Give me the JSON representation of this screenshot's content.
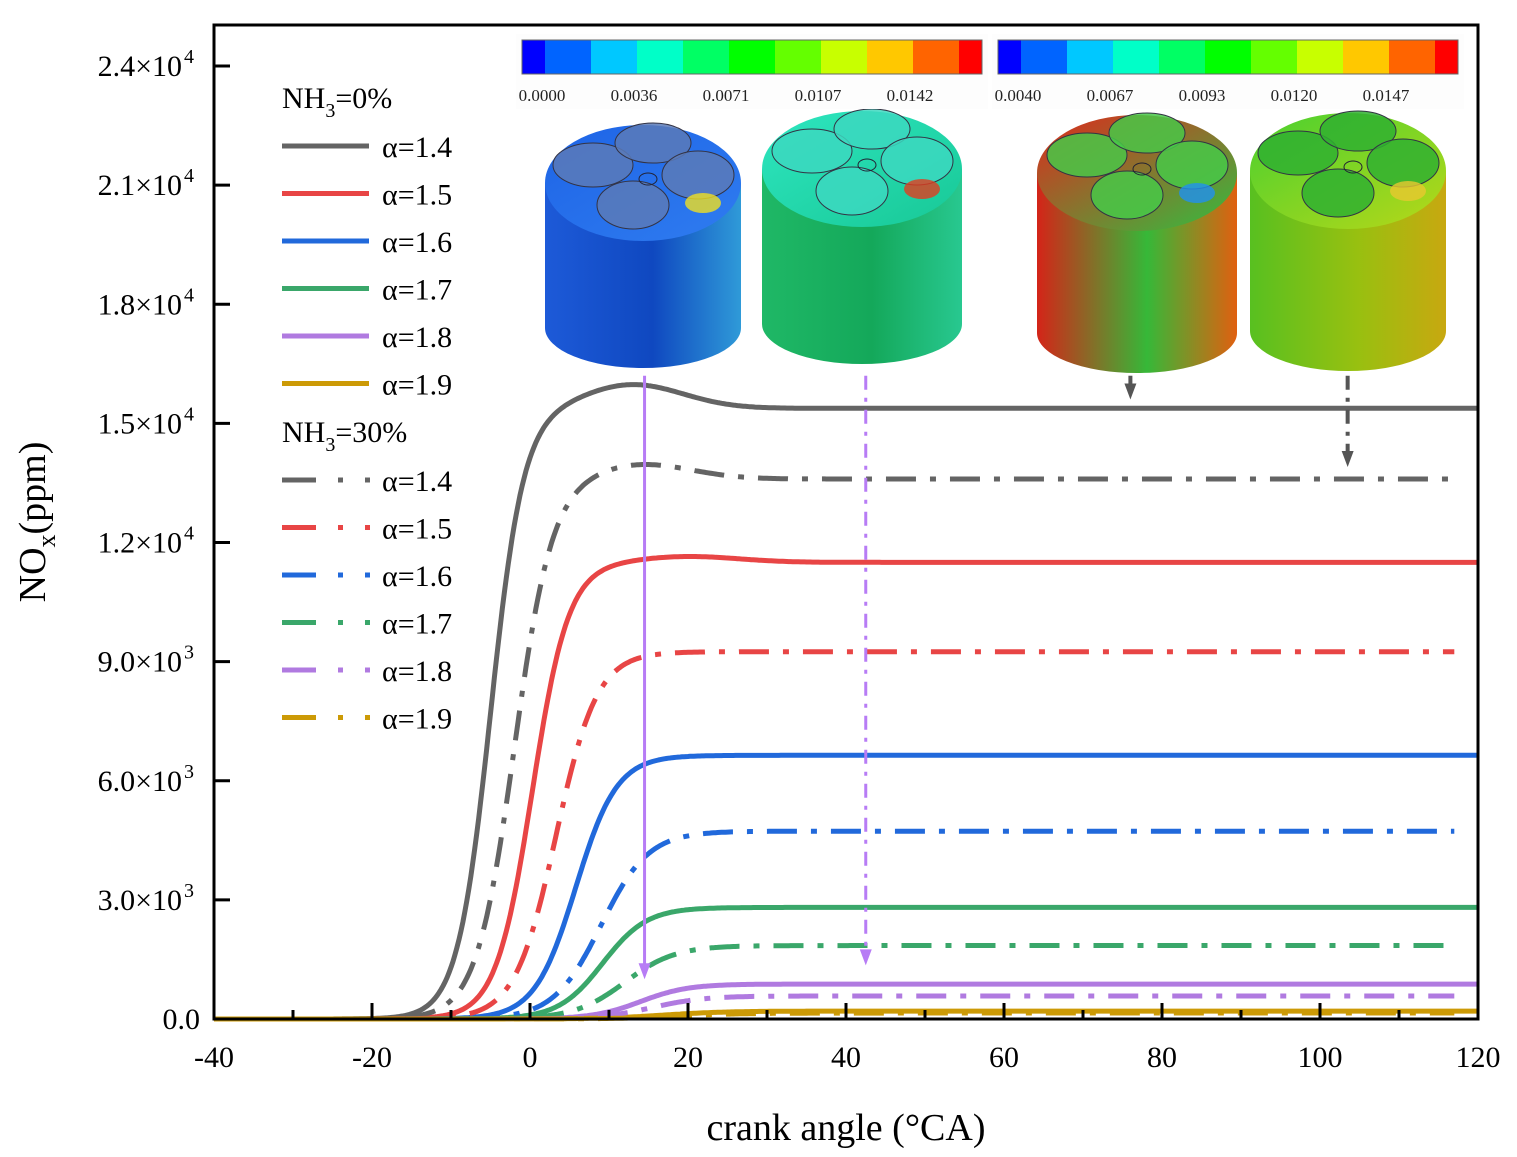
{
  "chart_data": {
    "type": "line",
    "title": "",
    "xlabel": "crank angle (°CA)",
    "ylabel_main": "NO",
    "ylabel_sub": "x",
    "ylabel_unit": "(ppm)",
    "xlim": [
      -40,
      120
    ],
    "ylim": [
      0,
      25000
    ],
    "grid": false,
    "x_ticks": [
      -40,
      -20,
      0,
      20,
      40,
      60,
      80,
      100,
      120
    ],
    "x_tick_labels": [
      "-40",
      "-20",
      "0",
      "20",
      "40",
      "60",
      "80",
      "100",
      "120"
    ],
    "x_minor_ticks": [
      -30,
      -10,
      10,
      30,
      50,
      70,
      90,
      110
    ],
    "y_ticks": [
      0,
      3000,
      6000,
      9000,
      12000,
      15000,
      18000,
      21000,
      24000
    ],
    "y_tick_labels": [
      {
        "mant": "0.0",
        "exp": ""
      },
      {
        "mant": "3.0×10",
        "exp": "3"
      },
      {
        "mant": "6.0×10",
        "exp": "3"
      },
      {
        "mant": "9.0×10",
        "exp": "3"
      },
      {
        "mant": "1.2×10",
        "exp": "4"
      },
      {
        "mant": "1.5×10",
        "exp": "4"
      },
      {
        "mant": "1.8×10",
        "exp": "4"
      },
      {
        "mant": "2.1×10",
        "exp": "4"
      },
      {
        "mant": "2.4×10",
        "exp": "4"
      }
    ],
    "legend_placement": "top-left",
    "legend_groups": [
      {
        "title_main": "NH",
        "title_sub": "3",
        "title_rest": "=0%",
        "style": "solid"
      },
      {
        "title_main": "NH",
        "title_sub": "3",
        "title_rest": "=30%",
        "style": "dashdot"
      }
    ],
    "series": [
      {
        "name": "α=1.4",
        "group": 0,
        "color": "#646464",
        "style": "solid",
        "x0": -5.0,
        "w": 2.1,
        "plateau": 15380,
        "peak": 600,
        "peak_x": 13
      },
      {
        "name": "α=1.5",
        "group": 0,
        "color": "#e84545",
        "style": "solid",
        "x0": 0.3,
        "w": 2.3,
        "plateau": 11500,
        "peak": 150,
        "peak_x": 20
      },
      {
        "name": "α=1.6",
        "group": 0,
        "color": "#2169db",
        "style": "solid",
        "x0": 5.8,
        "w": 2.6,
        "plateau": 6640,
        "peak": 0,
        "peak_x": 0
      },
      {
        "name": "α=1.7",
        "group": 0,
        "color": "#3aa76a",
        "style": "solid",
        "x0": 9.2,
        "w": 2.8,
        "plateau": 2810,
        "peak": 0,
        "peak_x": 0
      },
      {
        "name": "α=1.8",
        "group": 0,
        "color": "#b07ae0",
        "style": "solid",
        "x0": 14.0,
        "w": 3.0,
        "plateau": 880,
        "peak": 0,
        "peak_x": 0
      },
      {
        "name": "α=1.9",
        "group": 0,
        "color": "#cc9a06",
        "style": "solid",
        "x0": 17.0,
        "w": 4.0,
        "plateau": 200,
        "peak": 0,
        "peak_x": 0
      },
      {
        "name": "α=1.4",
        "group": 1,
        "color": "#646464",
        "style": "dashdot",
        "x0": -2.0,
        "w": 2.4,
        "plateau": 13600,
        "peak": 380,
        "peak_x": 14
      },
      {
        "name": "α=1.5",
        "group": 1,
        "color": "#e84545",
        "style": "dashdot",
        "x0": 3.3,
        "w": 2.6,
        "plateau": 9250,
        "peak": 0,
        "peak_x": 0
      },
      {
        "name": "α=1.6",
        "group": 1,
        "color": "#2169db",
        "style": "dashdot",
        "x0": 9.0,
        "w": 3.0,
        "plateau": 4730,
        "peak": 0,
        "peak_x": 0
      },
      {
        "name": "α=1.7",
        "group": 1,
        "color": "#3aa76a",
        "style": "dashdot",
        "x0": 12.0,
        "w": 3.2,
        "plateau": 1850,
        "peak": 0,
        "peak_x": 0
      },
      {
        "name": "α=1.8",
        "group": 1,
        "color": "#b07ae0",
        "style": "dashdot",
        "x0": 15.5,
        "w": 3.3,
        "plateau": 580,
        "peak": 0,
        "peak_x": 0
      },
      {
        "name": "α=1.9",
        "group": 1,
        "color": "#cc9a06",
        "style": "dashdot",
        "x0": 19.0,
        "w": 4.0,
        "plateau": 150,
        "peak": 0,
        "peak_x": 0
      }
    ],
    "annotations": [
      {
        "type": "arrow",
        "style": "solid",
        "color": "#b77cf5",
        "x": 14.5,
        "y_from": 16200,
        "y_to": 1000
      },
      {
        "type": "arrow",
        "style": "dashdot",
        "color": "#b77cf5",
        "x": 42.5,
        "y_from": 16200,
        "y_to": 1350
      },
      {
        "type": "arrow",
        "style": "solid",
        "color": "#555555",
        "x": 76,
        "y_from": 16200,
        "y_to": 15600
      },
      {
        "type": "arrow",
        "style": "dashdot",
        "color": "#555555",
        "x": 103.5,
        "y_from": 16200,
        "y_to": 13900
      }
    ],
    "insets": [
      {
        "name": "inset-nh3-0-alpha-1-4-bowl",
        "theme": "blue-mostly",
        "colorbar": 0
      },
      {
        "name": "inset-nh3-0-alpha-1-8-bowl",
        "theme": "cyan-green",
        "colorbar": 0
      },
      {
        "name": "inset-nh3-30-alpha-1-4-bowl",
        "theme": "red-green",
        "colorbar": 1
      },
      {
        "name": "inset-nh3-30-alpha-1-8-bowl",
        "theme": "green-yellow",
        "colorbar": 1
      }
    ],
    "colorbars": [
      {
        "labels": [
          "0.0000",
          "0.0036",
          "0.0071",
          "0.0107",
          "0.0142"
        ]
      },
      {
        "labels": [
          "0.0040",
          "0.0067",
          "0.0093",
          "0.0120",
          "0.0147"
        ]
      }
    ],
    "colormap": [
      "#0000ff",
      "#0064ff",
      "#00c8ff",
      "#00ffc8",
      "#00ff64",
      "#00ff00",
      "#64ff00",
      "#c8ff00",
      "#ffc800",
      "#ff6400",
      "#ff0000"
    ]
  }
}
